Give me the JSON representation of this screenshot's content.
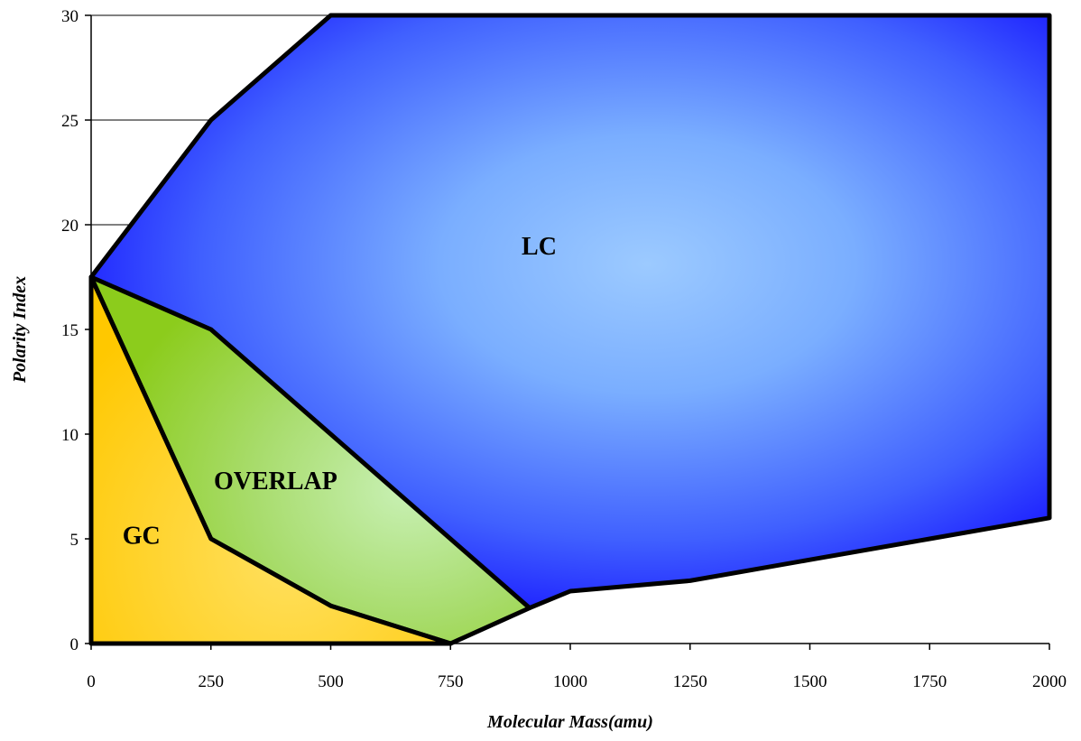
{
  "chart_data": {
    "type": "area",
    "title": "",
    "xlabel": "Molecular Mass(amu)",
    "ylabel": "Polarity Index",
    "xlim": [
      0,
      2000
    ],
    "ylim": [
      0,
      30
    ],
    "x_ticks": [
      "0",
      "250",
      "500",
      "750",
      "1000",
      "1250",
      "1500",
      "1750",
      "2000"
    ],
    "y_ticks": [
      "0",
      "5",
      "10",
      "15",
      "20",
      "25",
      "30"
    ],
    "grid": "horizontal, left portion only",
    "regions": [
      {
        "name": "LC",
        "color": "#1a1aff",
        "highlight": "#9ccaff",
        "label_at": [
          935,
          19
        ],
        "points": [
          [
            0,
            17.5
          ],
          [
            250,
            25
          ],
          [
            500,
            30
          ],
          [
            2000,
            30
          ],
          [
            2000,
            6
          ],
          [
            1750,
            5
          ],
          [
            1500,
            4
          ],
          [
            1250,
            3
          ],
          [
            1000,
            2.5
          ],
          [
            915,
            1.7
          ],
          [
            0,
            17.5
          ]
        ]
      },
      {
        "name": "OVERLAP",
        "color": "#8ccc1c",
        "highlight": "#c8f0b4",
        "label_at": [
          385,
          7.8
        ],
        "points": [
          [
            0,
            17.5
          ],
          [
            250,
            15
          ],
          [
            500,
            10
          ],
          [
            915,
            1.7
          ],
          [
            750,
            0
          ],
          [
            500,
            1.8
          ],
          [
            250,
            5
          ],
          [
            0,
            17.5
          ]
        ]
      },
      {
        "name": "GC",
        "color": "#ffc800",
        "highlight": "#ffe060",
        "label_at": [
          105,
          5.2
        ],
        "points": [
          [
            0,
            17.5
          ],
          [
            250,
            5
          ],
          [
            500,
            1.8
          ],
          [
            750,
            0
          ],
          [
            0,
            0
          ],
          [
            0,
            17.5
          ]
        ]
      }
    ]
  }
}
